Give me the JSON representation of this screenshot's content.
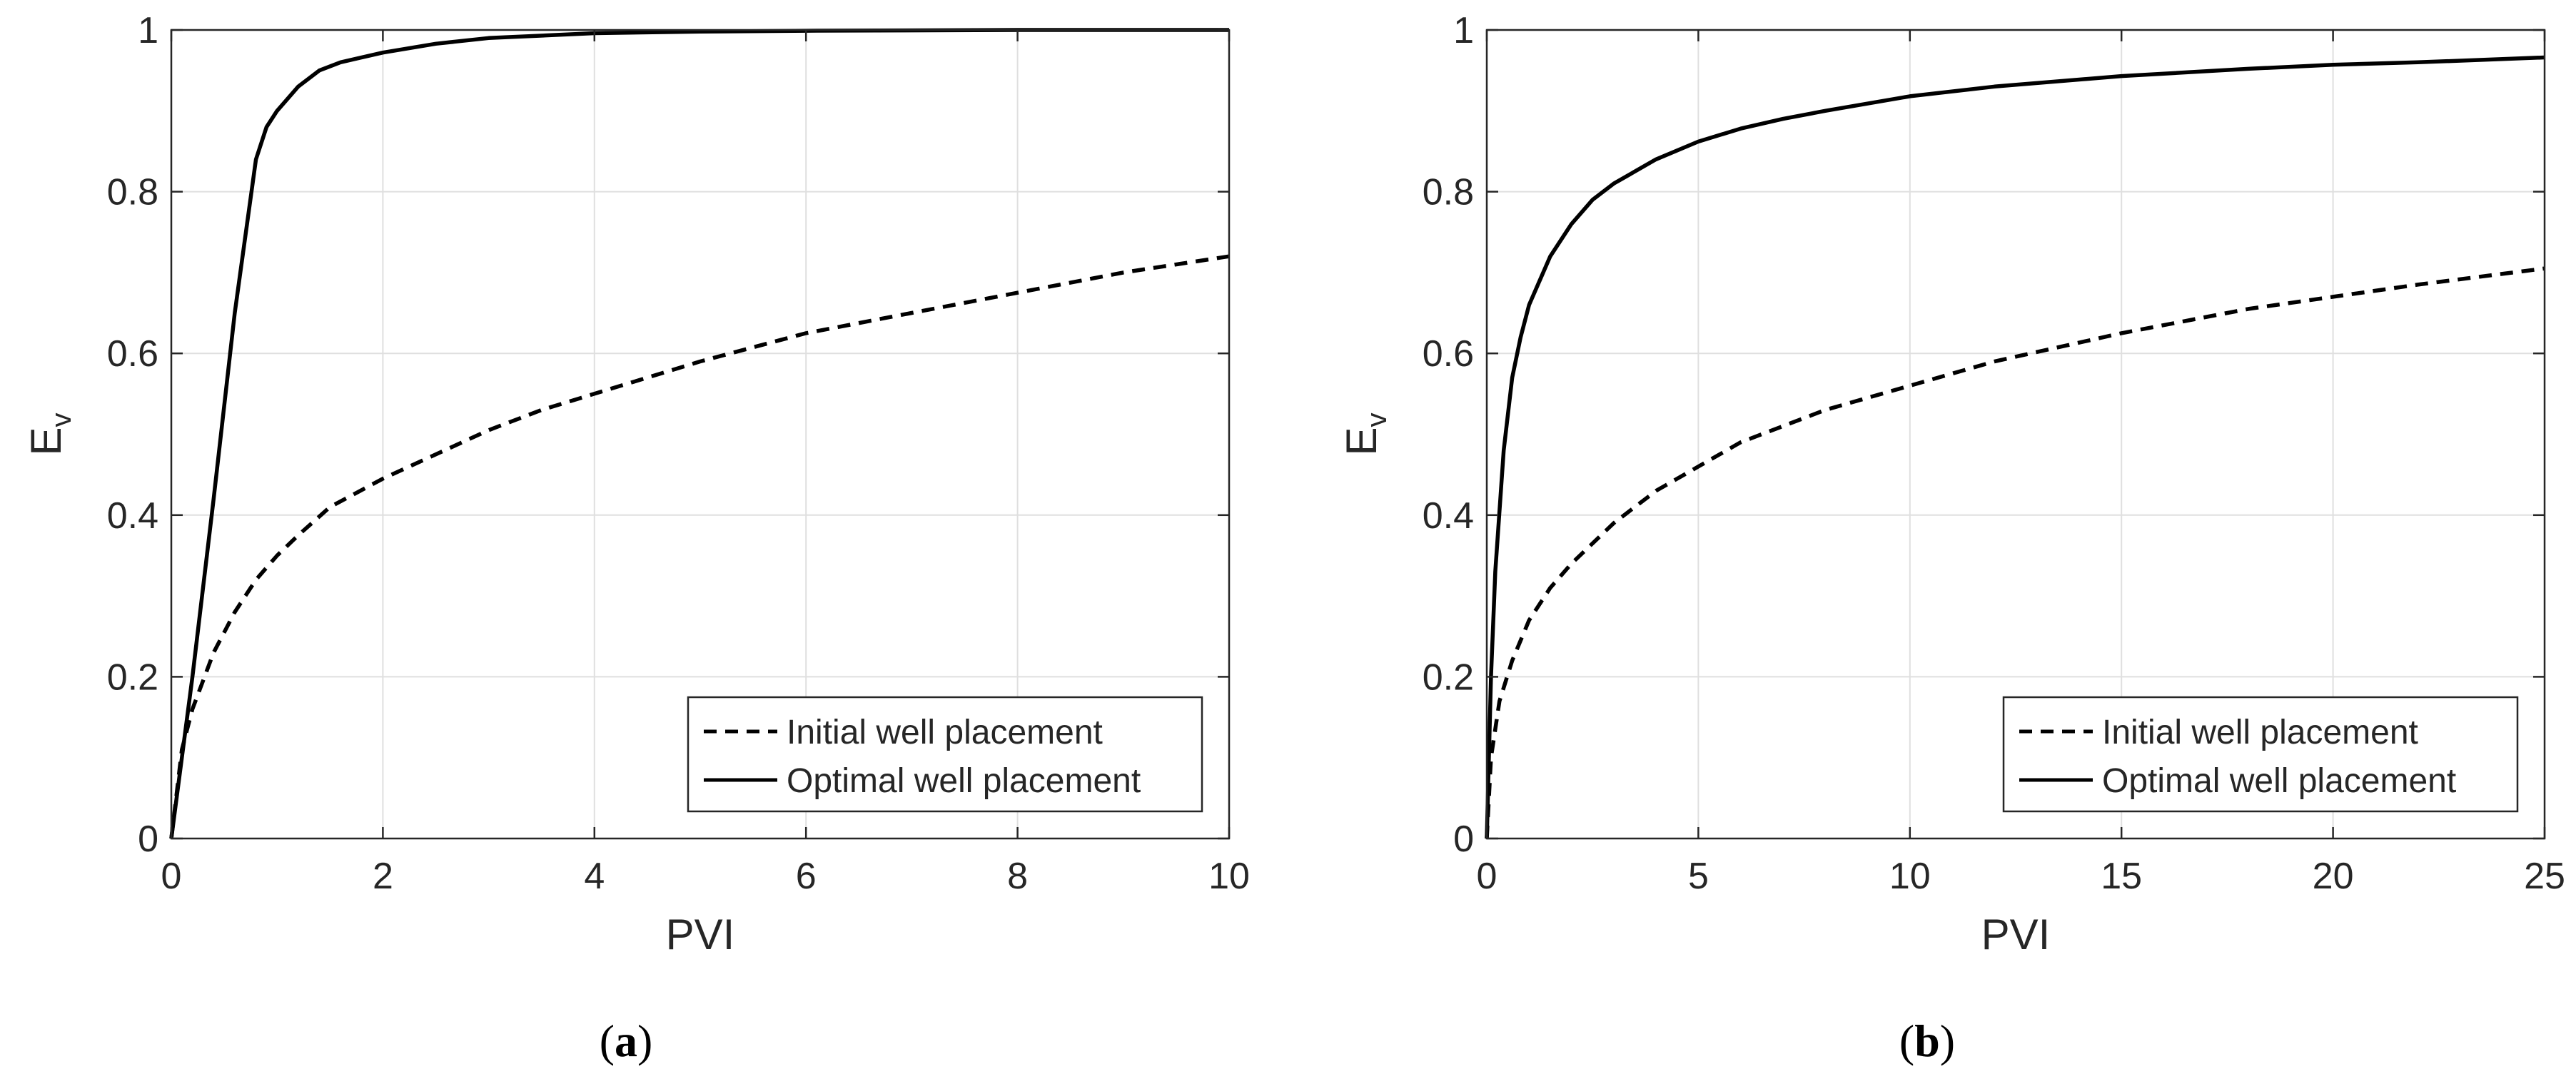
{
  "chart_data": [
    {
      "type": "line",
      "panel_label": "a",
      "xlabel": "PVI",
      "ylabel": "E",
      "ylabel_subscript": "v",
      "xlim": [
        0,
        10
      ],
      "ylim": [
        0,
        1
      ],
      "xticks": [
        0,
        2,
        4,
        6,
        8,
        10
      ],
      "yticks": [
        0,
        0.2,
        0.4,
        0.6,
        0.8,
        1
      ],
      "xtick_labels": [
        "0",
        "2",
        "4",
        "6",
        "8",
        "10"
      ],
      "ytick_labels": [
        "0",
        "0.2",
        "0.4",
        "0.6",
        "0.8",
        "1"
      ],
      "grid": true,
      "legend_position": "bottom-right",
      "series": [
        {
          "name": "Initial well placement",
          "style": "dashed",
          "color": "#000000",
          "x": [
            0,
            0.1,
            0.2,
            0.4,
            0.6,
            0.8,
            1.0,
            1.2,
            1.5,
            2.0,
            2.5,
            3.0,
            3.5,
            4.0,
            5.0,
            6.0,
            7.0,
            8.0,
            9.0,
            10.0
          ],
          "y": [
            0,
            0.11,
            0.16,
            0.23,
            0.28,
            0.32,
            0.35,
            0.375,
            0.41,
            0.445,
            0.475,
            0.505,
            0.53,
            0.55,
            0.59,
            0.625,
            0.65,
            0.675,
            0.7,
            0.72
          ]
        },
        {
          "name": "Optimal well placement",
          "style": "solid",
          "color": "#000000",
          "x": [
            0,
            0.2,
            0.4,
            0.6,
            0.8,
            0.9,
            1.0,
            1.2,
            1.4,
            1.6,
            2.0,
            2.5,
            3.0,
            4.0,
            5.0,
            6.0,
            8.0,
            10.0
          ],
          "y": [
            0,
            0.2,
            0.42,
            0.65,
            0.84,
            0.88,
            0.9,
            0.93,
            0.95,
            0.96,
            0.972,
            0.983,
            0.99,
            0.996,
            0.998,
            0.999,
            1.0,
            1.0
          ]
        }
      ]
    },
    {
      "type": "line",
      "panel_label": "b",
      "xlabel": "PVI",
      "ylabel": "E",
      "ylabel_subscript": "v",
      "xlim": [
        0,
        25
      ],
      "ylim": [
        0,
        1
      ],
      "xticks": [
        0,
        5,
        10,
        15,
        20,
        25
      ],
      "yticks": [
        0,
        0.2,
        0.4,
        0.6,
        0.8,
        1
      ],
      "xtick_labels": [
        "0",
        "5",
        "10",
        "15",
        "20",
        "25"
      ],
      "ytick_labels": [
        "0",
        "0.2",
        "0.4",
        "0.6",
        "0.8",
        "1"
      ],
      "grid": true,
      "legend_position": "bottom-right",
      "series": [
        {
          "name": "Initial well placement",
          "style": "dashed",
          "color": "#000000",
          "x": [
            0,
            0.1,
            0.3,
            0.6,
            1.0,
            1.5,
            2.0,
            3.0,
            4.0,
            5.0,
            6.0,
            8.0,
            10.0,
            12.0,
            15.0,
            18.0,
            20.0,
            22.0,
            25.0
          ],
          "y": [
            0,
            0.1,
            0.17,
            0.22,
            0.27,
            0.31,
            0.34,
            0.39,
            0.43,
            0.46,
            0.49,
            0.53,
            0.56,
            0.59,
            0.625,
            0.655,
            0.67,
            0.685,
            0.705
          ]
        },
        {
          "name": "Optimal well placement",
          "style": "solid",
          "color": "#000000",
          "x": [
            0,
            0.1,
            0.2,
            0.4,
            0.6,
            0.8,
            1.0,
            1.5,
            2.0,
            2.5,
            3.0,
            4.0,
            5.0,
            6.0,
            7.0,
            8.0,
            10.0,
            12.0,
            15.0,
            18.0,
            20.0,
            22.0,
            25.0
          ],
          "y": [
            0,
            0.2,
            0.33,
            0.48,
            0.57,
            0.62,
            0.66,
            0.72,
            0.76,
            0.79,
            0.81,
            0.84,
            0.862,
            0.878,
            0.89,
            0.9,
            0.918,
            0.93,
            0.943,
            0.952,
            0.957,
            0.96,
            0.966
          ]
        }
      ]
    }
  ]
}
